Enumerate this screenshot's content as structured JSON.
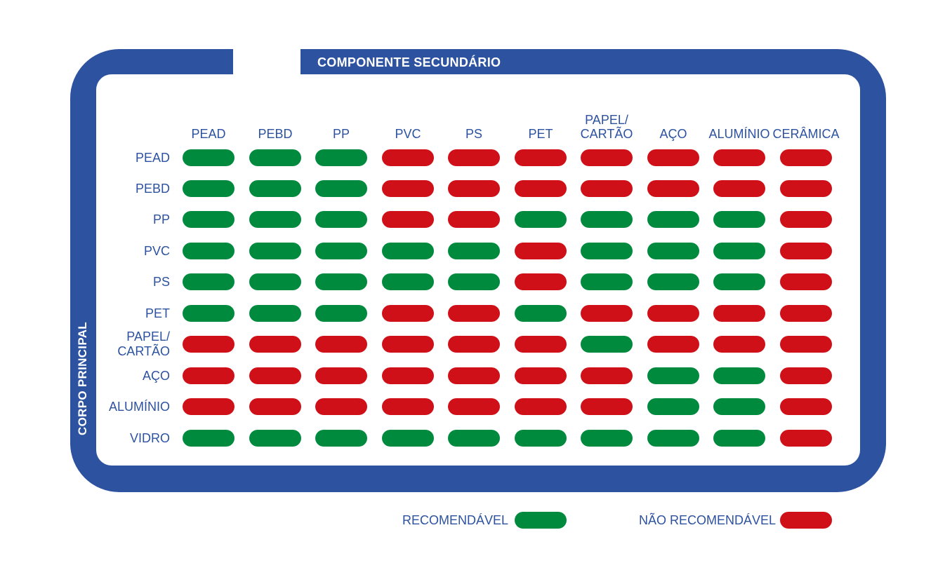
{
  "colors": {
    "frame": "#2c52a0",
    "recommended": "#008a3e",
    "not_recommended": "#cf1018",
    "text": "#2c52a0"
  },
  "secondary_title": "COMPONENTE SECUNDÁRIO",
  "main_title": "CORPO PRINCIPAL",
  "columns": [
    "PEAD",
    "PEBD",
    "PP",
    "PVC",
    "PS",
    "PET",
    "PAPEL/\nCARTÃO",
    "AÇO",
    "ALUMÍNIO",
    "CERÂMICA"
  ],
  "rows": [
    {
      "label": "PEAD",
      "cells": [
        "G",
        "G",
        "G",
        "R",
        "R",
        "R",
        "R",
        "R",
        "R",
        "R"
      ]
    },
    {
      "label": "PEBD",
      "cells": [
        "G",
        "G",
        "G",
        "R",
        "R",
        "R",
        "R",
        "R",
        "R",
        "R"
      ]
    },
    {
      "label": "PP",
      "cells": [
        "G",
        "G",
        "G",
        "R",
        "R",
        "G",
        "G",
        "G",
        "G",
        "R"
      ]
    },
    {
      "label": "PVC",
      "cells": [
        "G",
        "G",
        "G",
        "G",
        "G",
        "R",
        "G",
        "G",
        "G",
        "R"
      ]
    },
    {
      "label": "PS",
      "cells": [
        "G",
        "G",
        "G",
        "G",
        "G",
        "R",
        "G",
        "G",
        "G",
        "R"
      ]
    },
    {
      "label": "PET",
      "cells": [
        "G",
        "G",
        "G",
        "R",
        "R",
        "G",
        "R",
        "R",
        "R",
        "R"
      ]
    },
    {
      "label": "PAPEL/\nCARTÃO",
      "cells": [
        "R",
        "R",
        "R",
        "R",
        "R",
        "R",
        "G",
        "R",
        "R",
        "R"
      ]
    },
    {
      "label": "AÇO",
      "cells": [
        "R",
        "R",
        "R",
        "R",
        "R",
        "R",
        "R",
        "G",
        "G",
        "R"
      ]
    },
    {
      "label": "ALUMÍNIO",
      "cells": [
        "R",
        "R",
        "R",
        "R",
        "R",
        "R",
        "R",
        "G",
        "G",
        "R"
      ]
    },
    {
      "label": "VIDRO",
      "cells": [
        "G",
        "G",
        "G",
        "G",
        "G",
        "G",
        "G",
        "G",
        "G",
        "R"
      ]
    }
  ],
  "legend": {
    "recommended": "RECOMENDÁVEL",
    "not_recommended": "NÃO RECOMENDÁVEL"
  }
}
